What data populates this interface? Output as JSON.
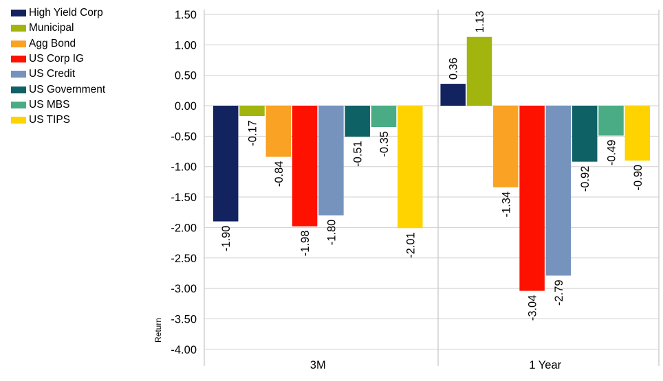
{
  "chart_data": {
    "type": "bar",
    "title": "",
    "xlabel": "",
    "ylabel": "Return",
    "ylim": [
      -4.0,
      1.5
    ],
    "y_ticks": [
      "1.50",
      "1.00",
      "0.50",
      "0.00",
      "-0.50",
      "-1.00",
      "-1.50",
      "-2.00",
      "-2.50",
      "-3.00",
      "-3.50",
      "-4.00"
    ],
    "y_tick_values": [
      1.5,
      1.0,
      0.5,
      0.0,
      -0.5,
      -1.0,
      -1.5,
      -2.0,
      -2.5,
      -3.0,
      -3.5,
      -4.0
    ],
    "categories": [
      "3M",
      "1 Year"
    ],
    "grid": true,
    "legend_position": "left",
    "series": [
      {
        "name": "High Yield Corp",
        "color": "#13235f",
        "values": [
          -1.9,
          0.36
        ],
        "labels": [
          "-1.90",
          "0.36"
        ]
      },
      {
        "name": "Municipal",
        "color": "#a2b50e",
        "values": [
          -0.17,
          1.13
        ],
        "labels": [
          "-0.17",
          "1.13"
        ]
      },
      {
        "name": "Agg Bond",
        "color": "#f9a224",
        "values": [
          -0.84,
          -1.34
        ],
        "labels": [
          "-0.84",
          "-1.34"
        ]
      },
      {
        "name": "US Corp IG",
        "color": "#ff1100",
        "values": [
          -1.98,
          -3.04
        ],
        "labels": [
          "-1.98",
          "-3.04"
        ]
      },
      {
        "name": "US Credit",
        "color": "#7693be",
        "values": [
          -1.8,
          -2.79
        ],
        "labels": [
          "-1.80",
          "-2.79"
        ]
      },
      {
        "name": "US Government",
        "color": "#0e6165",
        "values": [
          -0.51,
          -0.92
        ],
        "labels": [
          "-0.51",
          "-0.92"
        ]
      },
      {
        "name": "US MBS",
        "color": "#4aac85",
        "values": [
          -0.35,
          -0.49
        ],
        "labels": [
          "-0.35",
          "-0.49"
        ]
      },
      {
        "name": "US TIPS",
        "color": "#ffd300",
        "values": [
          -2.01,
          -0.9
        ],
        "labels": [
          "-2.01",
          "-0.90"
        ]
      }
    ]
  }
}
